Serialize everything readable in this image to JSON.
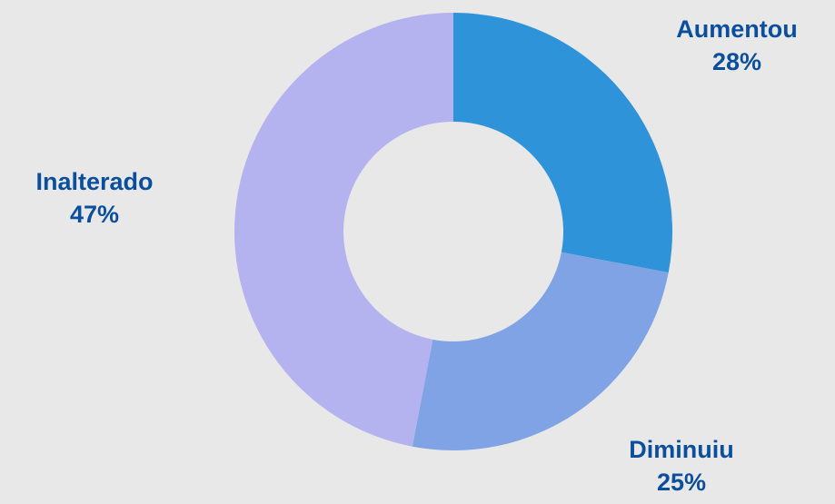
{
  "chart_data": {
    "type": "pie",
    "subtype": "donut",
    "legend": "none",
    "slices": [
      {
        "category": "Aumentou",
        "value": 28,
        "label": "28%",
        "color": "#2e93d8"
      },
      {
        "category": "Diminuiu",
        "value": 25,
        "label": "25%",
        "color": "#7fa3e4"
      },
      {
        "category": "Inalterado",
        "value": 47,
        "label": "47%",
        "color": "#b4b2ef"
      }
    ]
  },
  "background_color": "#e8e8e8",
  "label_color": "#0b4f9c"
}
